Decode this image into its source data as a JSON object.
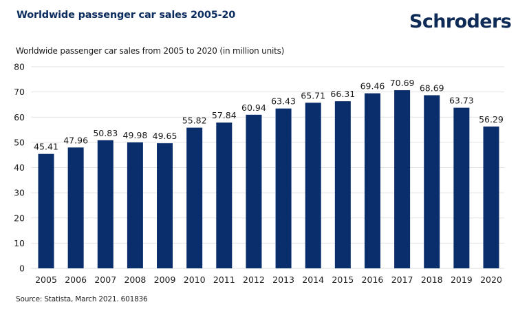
{
  "header": {
    "title": "Worldwide passenger car sales 2005-20",
    "logo": "Schroders"
  },
  "footer": {
    "source": "Source: Statista, March 2021. 601836"
  },
  "colors": {
    "bar": "#0a2d6b",
    "title": "#0b2c5e",
    "gridline": "#e3e3e3"
  },
  "chart_data": {
    "type": "bar",
    "title": "Worldwide passenger car sales from 2005 to 2020 (in million units)",
    "xlabel": "",
    "ylabel": "",
    "categories": [
      "2005",
      "2006",
      "2007",
      "2008",
      "2009",
      "2010",
      "2011",
      "2012",
      "2013",
      "2014",
      "2015",
      "2016",
      "2017",
      "2018",
      "2019",
      "2020"
    ],
    "values": [
      45.41,
      47.96,
      50.83,
      49.98,
      49.65,
      55.82,
      57.84,
      60.94,
      63.43,
      65.71,
      66.31,
      69.46,
      70.69,
      68.69,
      63.73,
      56.29
    ],
    "value_labels": [
      "45.41",
      "47.96",
      "50.83",
      "49.98",
      "49.65",
      "55.82",
      "57.84",
      "60.94",
      "63.43",
      "65.71",
      "66.31",
      "69.46",
      "70.69",
      "68.69",
      "63.73",
      "56.29"
    ],
    "ylim": [
      0,
      80
    ],
    "yticks": [
      0,
      10,
      20,
      30,
      40,
      50,
      60,
      70,
      80
    ],
    "ytick_labels": [
      "0",
      "10",
      "20",
      "30",
      "40",
      "50",
      "60",
      "70",
      "80"
    ],
    "grid": true,
    "legend": "none"
  }
}
